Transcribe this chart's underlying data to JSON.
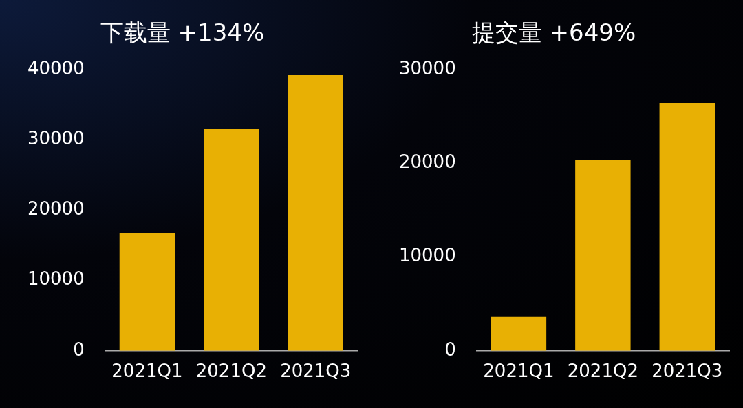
{
  "chart_data": [
    {
      "type": "bar",
      "title": "下载量 +134%",
      "categories": [
        "2021Q1",
        "2021Q2",
        "2021Q3"
      ],
      "values": [
        16700,
        31500,
        39200
      ],
      "color": "#e8b004",
      "ylim": [
        0,
        40000
      ],
      "yticks": [
        0,
        10000,
        20000,
        30000,
        40000
      ],
      "grid": false,
      "legend": false
    },
    {
      "type": "bar",
      "title": "提交量 +649%",
      "categories": [
        "2021Q1",
        "2021Q2",
        "2021Q3"
      ],
      "values": [
        3600,
        20300,
        26400
      ],
      "color": "#e8b004",
      "ylim": [
        0,
        30000
      ],
      "yticks": [
        0,
        10000,
        20000,
        30000
      ],
      "grid": false,
      "legend": false
    }
  ]
}
